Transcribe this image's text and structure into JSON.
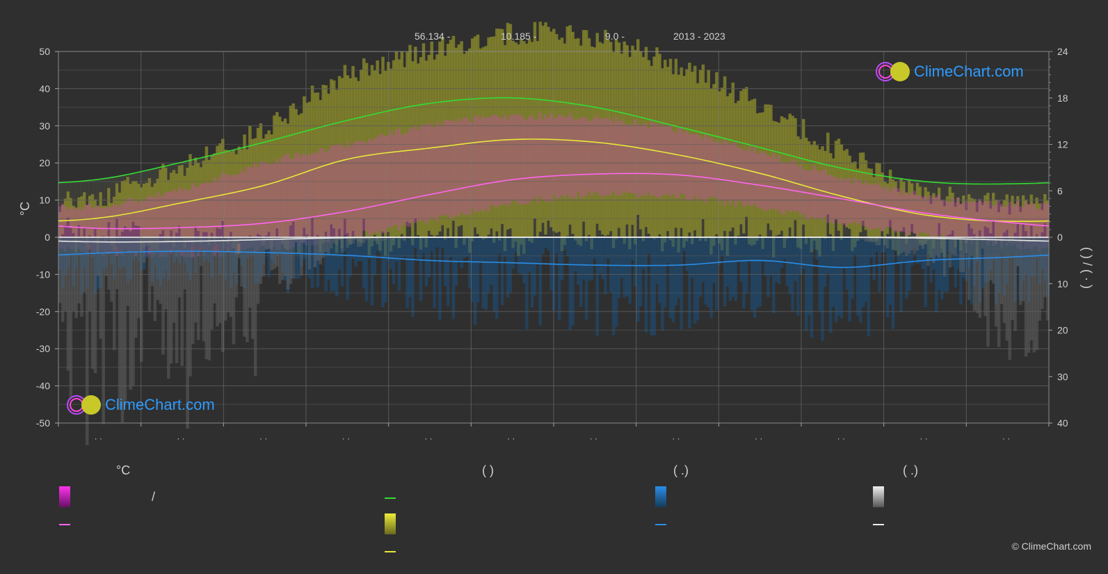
{
  "header": {
    "lat": "56.134 -",
    "lon": "10.185 -",
    "elev": "9.0 -",
    "years": "2013 - 2023"
  },
  "brand": {
    "name": "ClimeChart.com",
    "copyright": "© ClimeChart.com"
  },
  "legend": {
    "group_temp": "°C",
    "group_sun": "(          )",
    "group_rain": "(   .)",
    "group_snow": "(   .)",
    "slash": "/"
  },
  "chart_data": {
    "type": "area",
    "ylabel": "°C",
    "right_axis_label": "(   )   /   (  ·  )",
    "left_axis": {
      "ylim": [
        -50,
        50
      ],
      "ticks": [
        "50",
        "40",
        "30",
        "20",
        "10",
        "0",
        "-10",
        "-20",
        "-30",
        "-40",
        "-50"
      ]
    },
    "right_axis_top": {
      "ylim": [
        0,
        24
      ],
      "ticks": [
        "24",
        "18",
        "12",
        "6",
        "0"
      ]
    },
    "right_axis_bottom": {
      "ylim": [
        0,
        40
      ],
      "ticks": [
        "10",
        "20",
        "30",
        "40"
      ]
    },
    "x_tick_labels": [
      "· ·",
      "· ·",
      "· ·",
      "· ·",
      "· ·",
      "· ·",
      "· ·",
      "· ·",
      "· ·",
      "· ·",
      "· ·",
      "· ·"
    ],
    "grid": true,
    "months_x": [
      0.5,
      1.5,
      2.5,
      3.5,
      4.5,
      5.5,
      6.5,
      7.5,
      8.5,
      9.5,
      10.5,
      11.5
    ],
    "series": [
      {
        "key": "daylight",
        "color": "#33dd33",
        "values": [
          7.5,
          9.7,
          12.3,
          15.1,
          17.3,
          18.0,
          16.8,
          14.3,
          11.6,
          8.9,
          7.2,
          6.9
        ]
      },
      {
        "key": "sunshine",
        "color": "#e8e83a",
        "values": [
          5.2,
          9.3,
          14.0,
          21.0,
          24.0,
          26.3,
          25.6,
          22.2,
          17.2,
          11.0,
          6.0,
          4.3
        ]
      },
      {
        "key": "mean_temp",
        "color": "#ff66ee",
        "values": [
          2.4,
          2.6,
          3.8,
          7.0,
          11.5,
          15.5,
          17.0,
          16.8,
          14.0,
          10.3,
          6.5,
          4.0
        ]
      },
      {
        "key": "rain",
        "color": "#2a8ee8",
        "values": [
          3.4,
          3.0,
          3.3,
          3.9,
          5.0,
          5.5,
          6.0,
          6.0,
          5.0,
          6.5,
          5.0,
          4.3
        ]
      },
      {
        "key": "snow",
        "color": "#e8e8e8",
        "values": [
          1.0,
          0.9,
          0.5,
          0.1,
          0,
          0,
          0,
          0,
          0,
          0,
          0.2,
          0.6
        ]
      },
      {
        "key": "max_temp",
        "values": [
          8.5,
          13.0,
          20.0,
          25.0,
          30.0,
          32.5,
          32.0,
          29.0,
          23.0,
          16.0,
          11.0,
          9.0
        ]
      },
      {
        "key": "min_temp",
        "values": [
          -4.0,
          -4.5,
          -3.0,
          0.0,
          4.5,
          9.0,
          11.5,
          11.0,
          8.0,
          4.0,
          0.5,
          -2.0
        ]
      }
    ],
    "colors": {
      "grid": "#555555",
      "bg": "#2f2f2f",
      "text": "#d0d0d0"
    }
  }
}
